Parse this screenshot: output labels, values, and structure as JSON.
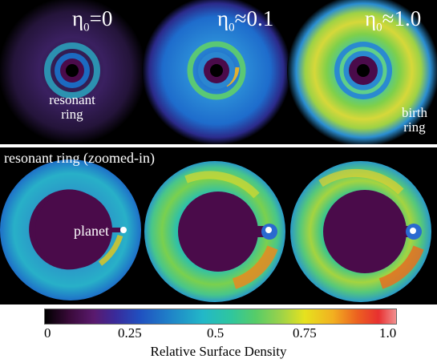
{
  "top_row": {
    "panels": [
      {
        "eta_prefix": "η",
        "eta_sub": "0",
        "eta_rel": "=0"
      },
      {
        "eta_prefix": "η",
        "eta_sub": "0",
        "eta_rel": "≈0.1"
      },
      {
        "eta_prefix": "η",
        "eta_sub": "0",
        "eta_rel": "≈1.0"
      }
    ],
    "resonant_label_line1": "resonant",
    "resonant_label_line2": "ring",
    "birth_label_line1": "birth",
    "birth_label_line2": "ring"
  },
  "bottom_row": {
    "title": "resonant ring (zoomed-in)",
    "planet_label": "planet"
  },
  "colorbar": {
    "ticks": [
      "0",
      "0.25",
      "0.5",
      "0.75",
      "1.0"
    ],
    "label": "Relative Surface Density",
    "colors": [
      "#000000",
      "#3a0a3a",
      "#5a1a6e",
      "#2a3ca8",
      "#1f7fc8",
      "#22b8c8",
      "#37c98a",
      "#8ad24a",
      "#e6e21e",
      "#f2a020",
      "#e83020",
      "#f07070"
    ]
  }
}
